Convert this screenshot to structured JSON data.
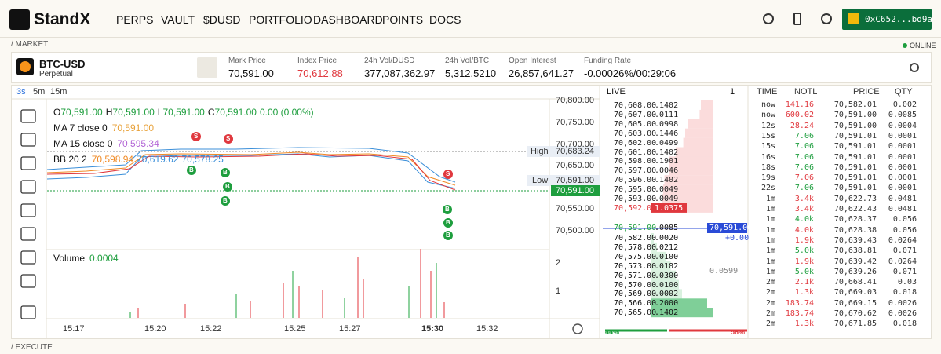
{
  "header": {
    "logo": "StandX",
    "nav": [
      "PERPS",
      "VAULT",
      "$DUSD",
      "PORTFOLIO",
      "DASHBOARD",
      "POINTS",
      "DOCS"
    ],
    "wallet": "0xC652...bd9a"
  },
  "breadcrumb": "/ MARKET",
  "status": "ONLINE",
  "footer": "/ EXECUTE",
  "ticker": {
    "symbol": "BTC-USD",
    "kind": "Perpetual",
    "stats": [
      {
        "label": "Mark Price",
        "value": "70,591.00",
        "color": "#111111"
      },
      {
        "label": "Index Price",
        "value": "70,612.88",
        "color": "#e0383e"
      },
      {
        "label": "24h Vol/DUSD",
        "value": "377,087,362.97",
        "color": "#111111"
      },
      {
        "label": "24h Vol/BTC",
        "value": "5,312.5210",
        "color": "#111111"
      },
      {
        "label": "Open Interest",
        "value": "26,857,641.27",
        "color": "#111111"
      },
      {
        "label": "Funding Rate",
        "value": "-0.00026%/00:29:06",
        "color": "#111111"
      }
    ]
  },
  "chart": {
    "intervals": [
      "3s",
      "5m",
      "15m"
    ],
    "ohlc": [
      {
        "key": "O",
        "value": "70,591.00"
      },
      {
        "key": "H",
        "value": "70,591.00"
      },
      {
        "key": "L",
        "value": "70,591.00"
      },
      {
        "key": "C",
        "value": "70,591.00"
      }
    ],
    "change": "0.00 (0.00%)",
    "indicators": [
      {
        "name": "MA 7 close 0",
        "values": [
          "70,591.00"
        ],
        "colors": [
          "#e8a33d"
        ]
      },
      {
        "name": "MA 15 close 0",
        "values": [
          "70,595.34"
        ],
        "colors": [
          "#b366d6"
        ]
      },
      {
        "name": "BB 20 2",
        "values": [
          "70,598.94",
          "70,619.62",
          "70,578.25"
        ],
        "colors": [
          "#f08a24",
          "#3b8fd9",
          "#3b8fd9"
        ]
      }
    ],
    "price_axis": [
      "70,800.00",
      "70,750.00",
      "70,700.00",
      "70,650.00",
      "70,550.00",
      "70,500.00"
    ],
    "high": {
      "label": "High",
      "value": "70,683.24"
    },
    "low": {
      "label": "Low",
      "value": "70,591.00"
    },
    "last": "70,591.00",
    "volume": {
      "label": "Volume",
      "value": "0.0004"
    },
    "volume_axis": [
      "2",
      "1"
    ],
    "time_axis": [
      "15:17",
      "15:20",
      "15:22",
      "15:25",
      "15:27",
      "15:30",
      "15:32"
    ],
    "markers": [
      "S",
      "S",
      "B",
      "B",
      "B",
      "B",
      "S",
      "B",
      "B",
      "B"
    ]
  },
  "orderbook": {
    "title": "LIVE",
    "depth": "1",
    "asks": [
      [
        "70,608.00",
        ".1402"
      ],
      [
        "70,607.00",
        ".0111"
      ],
      [
        "70,605.00",
        ".0998"
      ],
      [
        "70,603.00",
        ".1446"
      ],
      [
        "70,602.00",
        ".0499"
      ],
      [
        "70,601.00",
        ".1402"
      ],
      [
        "70,598.00",
        ".1901"
      ],
      [
        "70,597.00",
        ".0046"
      ],
      [
        "70,596.00",
        ".1402"
      ],
      [
        "70,595.00",
        ".0049"
      ],
      [
        "70,593.00",
        ".0049"
      ],
      [
        "70,592.00",
        "1.0375"
      ]
    ],
    "mid": [
      "70,591.00",
      ".0085"
    ],
    "bids": [
      [
        "70,582.00",
        ".0020"
      ],
      [
        "70,578.00",
        ".0212"
      ],
      [
        "70,575.00",
        ".0100"
      ],
      [
        "70,573.00",
        ".0182"
      ],
      [
        "70,571.00",
        ".0300"
      ],
      [
        "70,570.00",
        ".0100"
      ],
      [
        "70,569.00",
        ".0002"
      ],
      [
        "70,566.00",
        ".2000"
      ],
      [
        "70,565.00",
        ".1402"
      ]
    ],
    "mark": "70,591.00",
    "mark_change": "+0.00",
    "sum": "0.0599",
    "buy_pct": "44%",
    "sell_pct": "56%"
  },
  "trades": {
    "headers": [
      "TIME",
      "NOTL",
      "PRICE",
      "QTY"
    ],
    "rows": [
      {
        "time": "now",
        "notional": "141.16",
        "price": "70,582.01",
        "qty": "0.002",
        "color": "#e0383e"
      },
      {
        "time": "now",
        "notional": "600.02",
        "price": "70,591.00",
        "qty": "0.0085",
        "color": "#e0383e"
      },
      {
        "time": "12s",
        "notional": "28.24",
        "price": "70,591.00",
        "qty": "0.0004",
        "color": "#e0383e"
      },
      {
        "time": "15s",
        "notional": "7.06",
        "price": "70,591.01",
        "qty": "0.0001",
        "color": "#1e9e3e"
      },
      {
        "time": "15s",
        "notional": "7.06",
        "price": "70,591.01",
        "qty": "0.0001",
        "color": "#1e9e3e"
      },
      {
        "time": "16s",
        "notional": "7.06",
        "price": "70,591.01",
        "qty": "0.0001",
        "color": "#1e9e3e"
      },
      {
        "time": "18s",
        "notional": "7.06",
        "price": "70,591.01",
        "qty": "0.0001",
        "color": "#1e9e3e"
      },
      {
        "time": "19s",
        "notional": "7.06",
        "price": "70,591.01",
        "qty": "0.0001",
        "color": "#e0383e"
      },
      {
        "time": "22s",
        "notional": "7.06",
        "price": "70,591.01",
        "qty": "0.0001",
        "color": "#1e9e3e"
      },
      {
        "time": "1m",
        "notional": "3.4k",
        "price": "70,622.73",
        "qty": "0.0481",
        "color": "#e0383e"
      },
      {
        "time": "1m",
        "notional": "3.4k",
        "price": "70,622.43",
        "qty": "0.0481",
        "color": "#e0383e"
      },
      {
        "time": "1m",
        "notional": "4.0k",
        "price": "70,628.37",
        "qty": "0.056",
        "color": "#1e9e3e"
      },
      {
        "time": "1m",
        "notional": "4.0k",
        "price": "70,628.38",
        "qty": "0.056",
        "color": "#e0383e"
      },
      {
        "time": "1m",
        "notional": "1.9k",
        "price": "70,639.43",
        "qty": "0.0264",
        "color": "#e0383e"
      },
      {
        "time": "1m",
        "notional": "5.0k",
        "price": "70,638.81",
        "qty": "0.071",
        "color": "#1e9e3e"
      },
      {
        "time": "1m",
        "notional": "1.9k",
        "price": "70,639.42",
        "qty": "0.0264",
        "color": "#e0383e"
      },
      {
        "time": "1m",
        "notional": "5.0k",
        "price": "70,639.26",
        "qty": "0.071",
        "color": "#1e9e3e"
      },
      {
        "time": "2m",
        "notional": "2.1k",
        "price": "70,668.41",
        "qty": "0.03",
        "color": "#e0383e"
      },
      {
        "time": "2m",
        "notional": "1.3k",
        "price": "70,669.03",
        "qty": "0.018",
        "color": "#e0383e"
      },
      {
        "time": "2m",
        "notional": "183.74",
        "price": "70,669.15",
        "qty": "0.0026",
        "color": "#e0383e"
      },
      {
        "time": "2m",
        "notional": "183.74",
        "price": "70,670.62",
        "qty": "0.0026",
        "color": "#e0383e"
      },
      {
        "time": "2m",
        "notional": "1.3k",
        "price": "70,671.85",
        "qty": "0.018",
        "color": "#e0383e"
      }
    ]
  }
}
